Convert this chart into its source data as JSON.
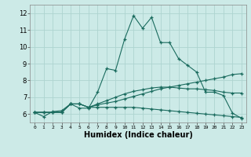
{
  "xlabel": "Humidex (Indice chaleur)",
  "bg_color": "#cceae7",
  "grid_color": "#aed4d0",
  "line_color": "#1a6b5e",
  "xlim": [
    -0.5,
    23.5
  ],
  "ylim": [
    5.5,
    12.5
  ],
  "yticks": [
    6,
    7,
    8,
    9,
    10,
    11,
    12
  ],
  "xticks": [
    0,
    1,
    2,
    3,
    4,
    5,
    6,
    7,
    8,
    9,
    10,
    11,
    12,
    13,
    14,
    15,
    16,
    17,
    18,
    19,
    20,
    21,
    22,
    23
  ],
  "lines": [
    {
      "x": [
        0,
        1,
        2,
        3,
        4,
        5,
        6,
        7,
        8,
        9,
        10,
        11,
        12,
        13,
        14,
        15,
        16,
        17,
        18,
        19,
        20,
        21,
        22,
        23
      ],
      "y": [
        6.1,
        5.85,
        6.15,
        6.2,
        6.6,
        6.35,
        6.35,
        7.3,
        8.7,
        8.6,
        10.45,
        11.85,
        11.1,
        11.75,
        10.25,
        10.25,
        9.3,
        8.9,
        8.5,
        7.3,
        7.3,
        7.1,
        6.05,
        5.75
      ]
    },
    {
      "x": [
        0,
        1,
        2,
        3,
        4,
        5,
        6,
        7,
        8,
        9,
        10,
        11,
        12,
        13,
        14,
        15,
        16,
        17,
        18,
        19,
        20,
        21,
        22,
        23
      ],
      "y": [
        6.1,
        6.1,
        6.1,
        6.1,
        6.6,
        6.6,
        6.4,
        6.55,
        6.65,
        6.75,
        6.9,
        7.05,
        7.2,
        7.35,
        7.5,
        7.6,
        7.7,
        7.8,
        7.9,
        8.0,
        8.1,
        8.2,
        8.35,
        8.4
      ]
    },
    {
      "x": [
        0,
        1,
        2,
        3,
        4,
        5,
        6,
        7,
        8,
        9,
        10,
        11,
        12,
        13,
        14,
        15,
        16,
        17,
        18,
        19,
        20,
        21,
        22,
        23
      ],
      "y": [
        6.1,
        6.1,
        6.1,
        6.1,
        6.6,
        6.6,
        6.4,
        6.4,
        6.4,
        6.4,
        6.4,
        6.4,
        6.35,
        6.3,
        6.25,
        6.2,
        6.15,
        6.1,
        6.05,
        6.0,
        5.95,
        5.9,
        5.85,
        5.8
      ]
    },
    {
      "x": [
        0,
        1,
        2,
        3,
        4,
        5,
        6,
        7,
        8,
        9,
        10,
        11,
        12,
        13,
        14,
        15,
        16,
        17,
        18,
        19,
        20,
        21,
        22,
        23
      ],
      "y": [
        6.1,
        6.1,
        6.1,
        6.1,
        6.6,
        6.6,
        6.4,
        6.6,
        6.8,
        7.0,
        7.2,
        7.35,
        7.45,
        7.55,
        7.6,
        7.6,
        7.55,
        7.5,
        7.5,
        7.45,
        7.4,
        7.3,
        7.25,
        7.25
      ]
    }
  ]
}
